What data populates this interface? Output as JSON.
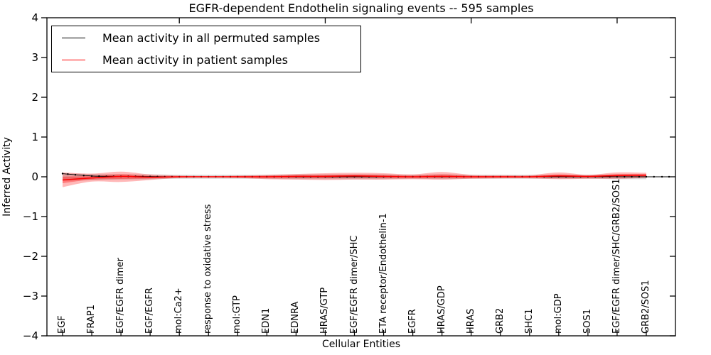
{
  "title": "EGFR-dependent Endothelin signaling events -- 595 samples",
  "chart_data": {
    "type": "line",
    "title": "EGFR-dependent Endothelin signaling events -- 595 samples",
    "xlabel": "Cellular Entities",
    "ylabel": "Inferred Activity",
    "ylim": [
      -4,
      4
    ],
    "yticks": [
      -4,
      -3,
      -2,
      -1,
      0,
      1,
      2,
      3,
      4
    ],
    "grid": false,
    "legend_position": "upper left",
    "legend": [
      {
        "label": "Mean activity in all permuted samples",
        "color": "#000000"
      },
      {
        "label": "Mean activity in patient samples",
        "color": "#ff0000"
      }
    ],
    "colors": {
      "permuted_line": "#000000",
      "patient_line": "#ff0000",
      "patient_band": "rgba(255,0,0,0.28)",
      "patient_band_inner": "rgba(255,0,0,0.33)",
      "permuted_band": "rgba(130,130,130,0.30)"
    },
    "categories": [
      "EGF",
      "FRAP1",
      "EGF/EGFR dimer",
      "EGF/EGFR",
      "mol:Ca2+",
      "response to oxidative stress",
      "mol:GTP",
      "EDN1",
      "EDNRA",
      "HRAS/GTP",
      "EGF/EGFR dimer/SHC",
      "ETA receptor/Endothelin-1",
      "EGFR",
      "HRAS/GDP",
      "HRAS",
      "GRB2",
      "SHC1",
      "mol:GDP",
      "SOS1",
      "EGF/EGFR dimer/SHC/GRB2/SOS1",
      "GRB2/SOS1"
    ],
    "series": [
      {
        "name": "Mean activity in all permuted samples",
        "values": [
          0.08,
          0.02,
          0.01,
          0.005,
          0,
          0,
          0,
          0,
          0,
          0,
          0,
          0,
          0,
          0,
          0,
          0,
          0,
          0,
          0,
          0,
          0
        ]
      },
      {
        "name": "Mean activity in patient samples",
        "values": [
          -0.08,
          -0.03,
          0.01,
          -0.01,
          0,
          0,
          0,
          0,
          0.01,
          0.01,
          0.02,
          0.01,
          0,
          0.01,
          0,
          0,
          0,
          0.02,
          0.01,
          0.03,
          0.04
        ]
      }
    ],
    "patient_band": {
      "lower": [
        -0.26,
        -0.12,
        -0.13,
        -0.08,
        -0.03,
        -0.02,
        -0.03,
        -0.06,
        -0.07,
        -0.08,
        -0.07,
        -0.07,
        -0.06,
        -0.07,
        -0.05,
        -0.04,
        -0.04,
        -0.06,
        -0.05,
        -0.05,
        -0.03
      ],
      "upper": [
        0.11,
        0.08,
        0.13,
        0.06,
        0.03,
        0.02,
        0.03,
        0.05,
        0.07,
        0.09,
        0.1,
        0.09,
        0.06,
        0.12,
        0.05,
        0.04,
        0.04,
        0.11,
        0.05,
        0.11,
        0.1
      ]
    },
    "permuted_band": {
      "lower": [
        -0.1,
        -0.08,
        -0.07,
        -0.06,
        -0.05,
        -0.05,
        -0.05,
        -0.05,
        -0.06,
        -0.06,
        -0.06,
        -0.06,
        -0.05,
        -0.06,
        -0.05,
        -0.05,
        -0.05,
        -0.05,
        -0.05,
        -0.06,
        -0.06
      ],
      "upper": [
        0.09,
        0.07,
        0.06,
        0.06,
        0.05,
        0.05,
        0.05,
        0.05,
        0.06,
        0.06,
        0.06,
        0.06,
        0.05,
        0.06,
        0.05,
        0.05,
        0.05,
        0.05,
        0.05,
        0.06,
        0.06
      ]
    }
  }
}
